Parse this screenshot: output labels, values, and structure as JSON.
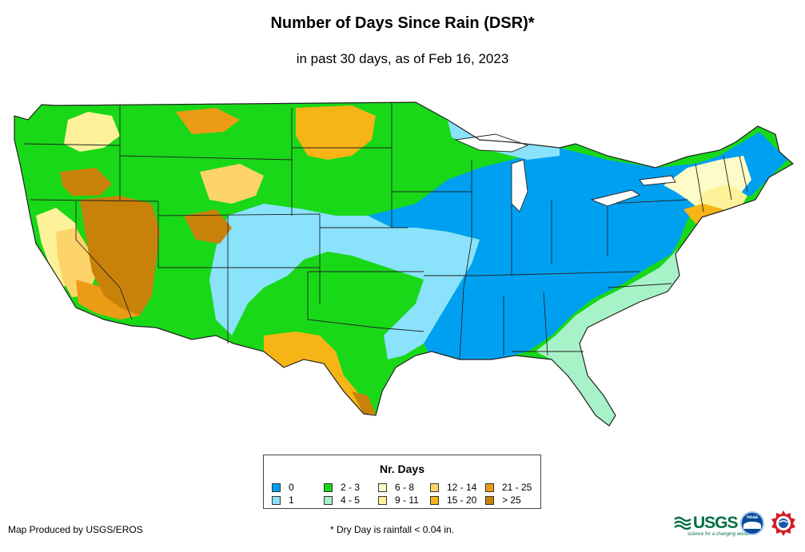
{
  "title": "Number of Days Since Rain (DSR)*",
  "subtitle": "in past 30 days, as of Feb 16, 2023",
  "legend": {
    "title": "Nr. Days",
    "items": [
      {
        "label": "0",
        "color": "#00a0f0"
      },
      {
        "label": "1",
        "color": "#8ae2fb"
      },
      {
        "label": "2 - 3",
        "color": "#18d818"
      },
      {
        "label": "4 - 5",
        "color": "#a8f2c8"
      },
      {
        "label": "6 - 8",
        "color": "#fdfcc8"
      },
      {
        "label": "9 - 11",
        "color": "#fdf29a"
      },
      {
        "label": "12 - 14",
        "color": "#fdd46a"
      },
      {
        "label": "15 - 20",
        "color": "#f6b416"
      },
      {
        "label": "21 - 25",
        "color": "#ec9c14"
      },
      {
        "label": "> 25",
        "color": "#c8820a"
      }
    ]
  },
  "credit": "Map Produced by USGS/EROS",
  "footnote": "* Dry Day is rainfall < 0.04 in.",
  "logos": {
    "usgs": "USGS",
    "usgs_tagline": "science for a changing world",
    "noaa": "noaa"
  },
  "colors": {
    "c0": "#00a0f0",
    "c1": "#8ae2fb",
    "c2": "#18d818",
    "c4": "#a8f2c8",
    "c6": "#fdfcc8",
    "c9": "#fdf29a",
    "c12": "#fdd46a",
    "c15": "#f6b416",
    "c21": "#ec9c14",
    "c25": "#c8820a",
    "border": "#222222"
  }
}
